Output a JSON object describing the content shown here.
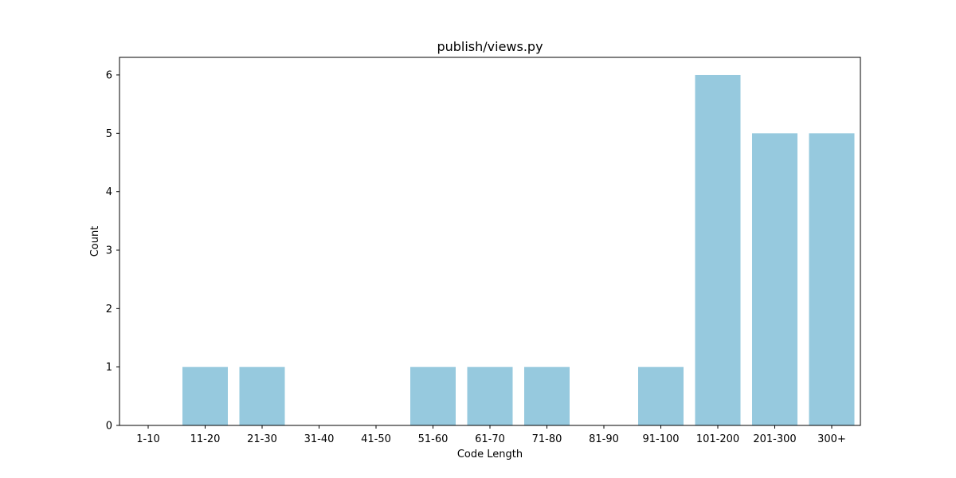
{
  "chart_data": {
    "type": "bar",
    "title": "publish/views.py",
    "xlabel": "Code Length",
    "ylabel": "Count",
    "categories": [
      "1-10",
      "11-20",
      "21-30",
      "31-40",
      "41-50",
      "51-60",
      "61-70",
      "71-80",
      "81-90",
      "91-100",
      "101-200",
      "201-300",
      "300+"
    ],
    "values": [
      0,
      1,
      1,
      0,
      0,
      1,
      1,
      1,
      0,
      1,
      6,
      5,
      5
    ],
    "yticks": [
      "0",
      "1",
      "2",
      "3",
      "4",
      "5",
      "6"
    ],
    "ylim": [
      0,
      6.3
    ],
    "grid": false,
    "bar_color": "#96c9de",
    "axis_color": "#000000"
  }
}
